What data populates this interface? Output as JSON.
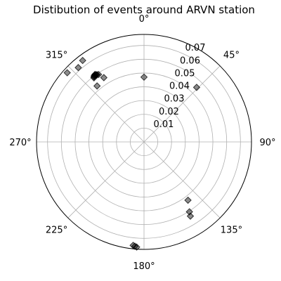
{
  "chart_data": {
    "type": "scatter",
    "projection": "polar",
    "title": "Distibution of events around ARVN station",
    "theta_zero": "N",
    "theta_direction": "clockwise",
    "theta_ticks": [
      {
        "deg": 0,
        "label": "0°"
      },
      {
        "deg": 45,
        "label": "45°"
      },
      {
        "deg": 90,
        "label": "90°"
      },
      {
        "deg": 135,
        "label": "135°"
      },
      {
        "deg": 180,
        "label": "180°"
      },
      {
        "deg": 225,
        "label": "225°"
      },
      {
        "deg": 270,
        "label": "270°"
      },
      {
        "deg": 315,
        "label": "315°"
      }
    ],
    "r_ticks": [
      {
        "value": 0.01,
        "label": "0.01"
      },
      {
        "value": 0.02,
        "label": "0.02"
      },
      {
        "value": 0.03,
        "label": "0.03"
      },
      {
        "value": 0.04,
        "label": "0.04"
      },
      {
        "value": 0.05,
        "label": "0.05"
      },
      {
        "value": 0.06,
        "label": "0.06"
      },
      {
        "value": 0.07,
        "label": "0.07"
      }
    ],
    "rlim": [
      0,
      0.078
    ],
    "rlabel_position_deg": 22.5,
    "marker": "diamond",
    "color": "#000000",
    "alpha": 0.45,
    "points": [
      {
        "theta": 0.0,
        "r": 0.047
      },
      {
        "theta": 44.0,
        "r": 0.055
      },
      {
        "theta": 323.0,
        "r": 0.074
      },
      {
        "theta": 318.5,
        "r": 0.072
      },
      {
        "theta": 312.0,
        "r": 0.075
      },
      {
        "theta": 322.0,
        "r": 0.059
      },
      {
        "theta": 322.5,
        "r": 0.0595
      },
      {
        "theta": 323.0,
        "r": 0.06
      },
      {
        "theta": 323.5,
        "r": 0.0602
      },
      {
        "theta": 324.0,
        "r": 0.0605
      },
      {
        "theta": 324.5,
        "r": 0.0598
      },
      {
        "theta": 325.0,
        "r": 0.0595
      },
      {
        "theta": 326.0,
        "r": 0.059
      },
      {
        "theta": 328.0,
        "r": 0.055
      },
      {
        "theta": 320.0,
        "r": 0.053
      },
      {
        "theta": 143.0,
        "r": 0.053
      },
      {
        "theta": 147.0,
        "r": 0.0605
      },
      {
        "theta": 148.0,
        "r": 0.0635
      },
      {
        "theta": 186.0,
        "r": 0.0755
      },
      {
        "theta": 185.0,
        "r": 0.076
      },
      {
        "theta": 184.0,
        "r": 0.0765
      }
    ]
  }
}
